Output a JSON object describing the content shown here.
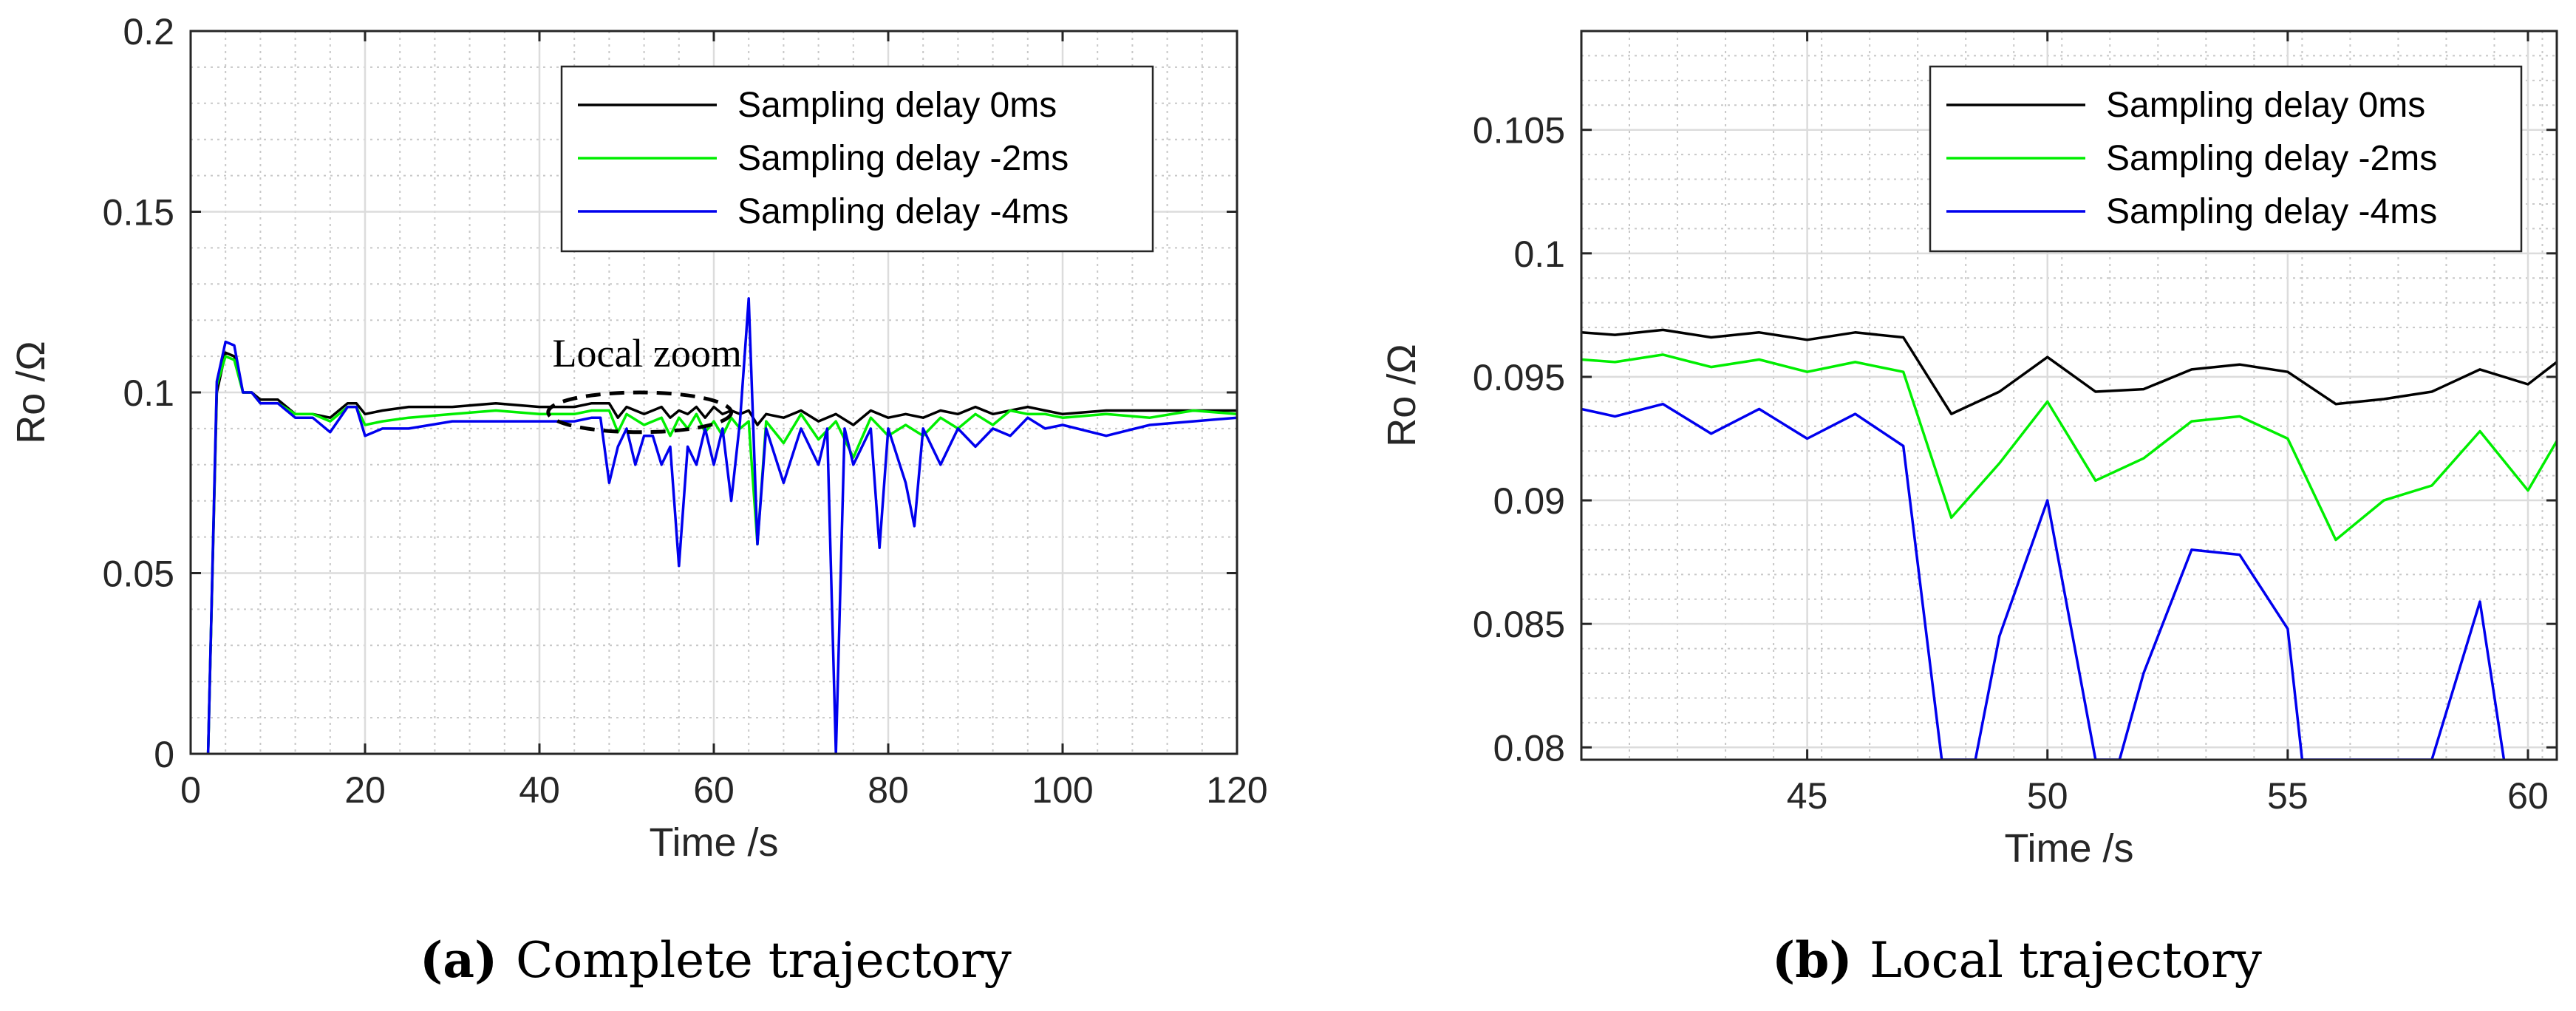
{
  "chart_data": [
    {
      "type": "line",
      "id": "a",
      "caption_letter": "(a)",
      "caption_text": "Complete trajectory",
      "xlabel": "Time /s",
      "ylabel": "Ro /Ω",
      "xlim": [
        0,
        120
      ],
      "ylim": [
        0,
        0.2
      ],
      "xticks": [
        0,
        20,
        40,
        60,
        80,
        100,
        120
      ],
      "yticks": [
        0,
        0.05,
        0.1,
        0.15,
        0.2
      ],
      "xtick_labels": [
        "0",
        "20",
        "40",
        "60",
        "80",
        "100",
        "120"
      ],
      "ytick_labels": [
        "0",
        "0.05",
        "0.1",
        "0.15",
        "0.2"
      ],
      "grid": true,
      "legend_position": "top-right",
      "annotation": "Local zoom",
      "annotation_ellipse": {
        "cx": 51.5,
        "cy": 0.0945,
        "rx": 10.5,
        "ry": 0.0055
      },
      "series": [
        {
          "name": "Sampling delay 0ms",
          "color": "#000000",
          "x": [
            2,
            3,
            4,
            5,
            6,
            7,
            8,
            10,
            12,
            14,
            16,
            18,
            19,
            20,
            22,
            25,
            30,
            35,
            40,
            44,
            46,
            48,
            49,
            50,
            52,
            54,
            55,
            56,
            57,
            58,
            59,
            60,
            61,
            62,
            63,
            64,
            65,
            66,
            68,
            70,
            72,
            74,
            76,
            78,
            80,
            82,
            84,
            86,
            88,
            90,
            92,
            94,
            96,
            98,
            100,
            105,
            110,
            115,
            120
          ],
          "y": [
            0,
            0.1,
            0.111,
            0.11,
            0.1,
            0.1,
            0.098,
            0.098,
            0.094,
            0.094,
            0.093,
            0.097,
            0.097,
            0.094,
            0.095,
            0.096,
            0.096,
            0.097,
            0.096,
            0.096,
            0.097,
            0.097,
            0.093,
            0.096,
            0.094,
            0.096,
            0.093,
            0.095,
            0.094,
            0.096,
            0.093,
            0.096,
            0.094,
            0.095,
            0.094,
            0.095,
            0.091,
            0.094,
            0.093,
            0.095,
            0.092,
            0.094,
            0.091,
            0.095,
            0.093,
            0.094,
            0.093,
            0.095,
            0.094,
            0.096,
            0.094,
            0.095,
            0.096,
            0.095,
            0.094,
            0.095,
            0.095,
            0.095,
            0.095
          ]
        },
        {
          "name": "Sampling delay -2ms",
          "color": "#00ee00",
          "x": [
            2,
            3,
            4,
            5,
            6,
            7,
            8,
            10,
            12,
            14,
            16,
            18,
            19,
            20,
            22,
            25,
            30,
            35,
            40,
            44,
            46,
            48,
            49,
            50,
            52,
            54,
            55,
            56,
            57,
            58,
            59,
            60,
            61,
            62,
            63,
            64,
            65,
            66,
            68,
            70,
            72,
            74,
            76,
            78,
            80,
            82,
            84,
            86,
            88,
            90,
            92,
            94,
            96,
            98,
            100,
            105,
            110,
            115,
            120
          ],
          "y": [
            0,
            0.102,
            0.11,
            0.109,
            0.1,
            0.1,
            0.097,
            0.097,
            0.094,
            0.094,
            0.092,
            0.096,
            0.096,
            0.091,
            0.092,
            0.093,
            0.094,
            0.095,
            0.094,
            0.094,
            0.095,
            0.095,
            0.089,
            0.094,
            0.091,
            0.093,
            0.088,
            0.093,
            0.09,
            0.094,
            0.089,
            0.092,
            0.088,
            0.093,
            0.09,
            0.092,
            0.058,
            0.092,
            0.086,
            0.094,
            0.087,
            0.092,
            0.082,
            0.093,
            0.088,
            0.091,
            0.088,
            0.093,
            0.09,
            0.094,
            0.091,
            0.095,
            0.094,
            0.094,
            0.093,
            0.094,
            0.093,
            0.095,
            0.094
          ]
        },
        {
          "name": "Sampling delay -4ms",
          "color": "#0000ee",
          "x": [
            2,
            3,
            4,
            5,
            6,
            7,
            8,
            10,
            12,
            14,
            16,
            18,
            19,
            20,
            22,
            25,
            30,
            35,
            40,
            44,
            46,
            47,
            48,
            49,
            50,
            51,
            52,
            53,
            54,
            55,
            56,
            57,
            58,
            59,
            60,
            61,
            62,
            63,
            64,
            65,
            66,
            68,
            70,
            72,
            73,
            74,
            75,
            76,
            78,
            79,
            80,
            82,
            83,
            84,
            86,
            88,
            90,
            92,
            94,
            96,
            98,
            100,
            105,
            110,
            115,
            120
          ],
          "y": [
            0,
            0.103,
            0.114,
            0.113,
            0.1,
            0.1,
            0.097,
            0.097,
            0.093,
            0.093,
            0.089,
            0.096,
            0.096,
            0.088,
            0.09,
            0.09,
            0.092,
            0.092,
            0.092,
            0.092,
            0.093,
            0.093,
            0.075,
            0.085,
            0.09,
            0.08,
            0.088,
            0.088,
            0.08,
            0.085,
            0.052,
            0.085,
            0.08,
            0.09,
            0.08,
            0.09,
            0.07,
            0.092,
            0.126,
            0.058,
            0.09,
            0.075,
            0.09,
            0.08,
            0.09,
            0.0,
            0.09,
            0.08,
            0.09,
            0.057,
            0.09,
            0.075,
            0.063,
            0.09,
            0.08,
            0.09,
            0.085,
            0.09,
            0.088,
            0.093,
            0.09,
            0.091,
            0.088,
            0.091,
            0.092,
            0.093
          ]
        }
      ]
    },
    {
      "type": "line",
      "id": "b",
      "caption_letter": "(b)",
      "caption_text": "Local trajectory",
      "xlabel": "Time /s",
      "ylabel": "Ro /Ω",
      "xlim": [
        40.3,
        60.6
      ],
      "ylim": [
        0.0795,
        0.109
      ],
      "xticks": [
        45,
        50,
        55,
        60
      ],
      "yticks": [
        0.08,
        0.085,
        0.09,
        0.095,
        0.1,
        0.105
      ],
      "xtick_labels": [
        "45",
        "50",
        "55",
        "60"
      ],
      "ytick_labels": [
        "0.08",
        "0.085",
        "0.09",
        "0.095",
        "0.1",
        "0.105"
      ],
      "grid": true,
      "legend_position": "top-right",
      "series": [
        {
          "name": "Sampling delay 0ms",
          "color": "#000000",
          "x": [
            40.3,
            41,
            42,
            43,
            44,
            45,
            46,
            47,
            48,
            49,
            50,
            51,
            52,
            53,
            54,
            55,
            56,
            57,
            58,
            59,
            60,
            60.6
          ],
          "y": [
            0.0968,
            0.0967,
            0.0969,
            0.0966,
            0.0968,
            0.0965,
            0.0968,
            0.0966,
            0.0935,
            0.0944,
            0.0958,
            0.0944,
            0.0945,
            0.0953,
            0.0955,
            0.0952,
            0.0939,
            0.0941,
            0.0944,
            0.0953,
            0.0947,
            0.0956
          ]
        },
        {
          "name": "Sampling delay -2ms",
          "color": "#00ee00",
          "x": [
            40.3,
            41,
            42,
            43,
            44,
            45,
            46,
            47,
            48,
            49,
            50,
            51,
            52,
            53,
            54,
            55,
            56,
            57,
            58,
            59,
            60,
            60.6
          ],
          "y": [
            0.0957,
            0.0956,
            0.0959,
            0.0954,
            0.0957,
            0.0952,
            0.0956,
            0.0952,
            0.0893,
            0.0915,
            0.094,
            0.0908,
            0.0917,
            0.0932,
            0.0934,
            0.0925,
            0.0884,
            0.09,
            0.0906,
            0.0928,
            0.0904,
            0.0924
          ]
        },
        {
          "name": "Sampling delay -4ms",
          "color": "#0000ee",
          "x": [
            40.3,
            41,
            42,
            43,
            44,
            45,
            46,
            47,
            47.8,
            48.5,
            49,
            50,
            51,
            51.5,
            52,
            53,
            54,
            55,
            55.3,
            58,
            59,
            59.5
          ],
          "y": [
            0.0937,
            0.0934,
            0.0939,
            0.0927,
            0.0937,
            0.0925,
            0.0935,
            0.0922,
            0.0795,
            0.0795,
            0.0845,
            0.09,
            0.0795,
            0.0795,
            0.083,
            0.088,
            0.0878,
            0.0848,
            0.0795,
            0.0795,
            0.0859,
            0.0795
          ]
        }
      ]
    }
  ]
}
